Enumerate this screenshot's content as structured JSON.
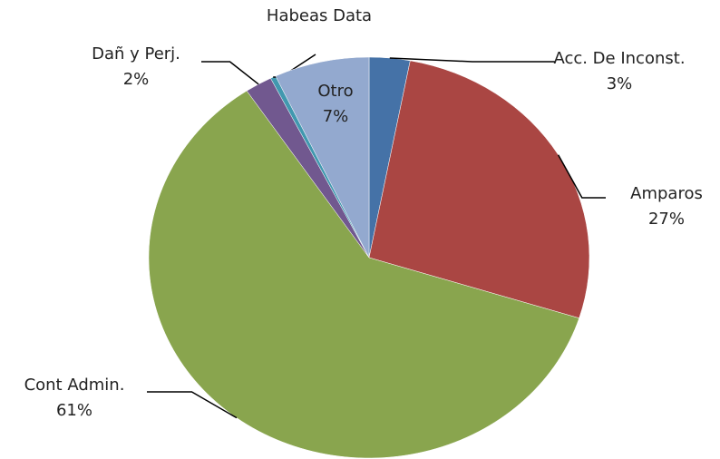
{
  "chart_data": {
    "type": "pie",
    "categories": [
      "Acc. De Inconst.",
      "Amparos",
      "Cont Admin.",
      "Dañ y Perj.",
      "Habeas Data",
      "Otro"
    ],
    "values": [
      3,
      27,
      61,
      2,
      0.4,
      7
    ],
    "value_labels": [
      "3%",
      "27%",
      "61%",
      "2%",
      null,
      "7%"
    ],
    "colors": [
      "#4572a7",
      "#aa4643",
      "#89a54e",
      "#71588f",
      "#4198af",
      "#93a9cf"
    ]
  }
}
